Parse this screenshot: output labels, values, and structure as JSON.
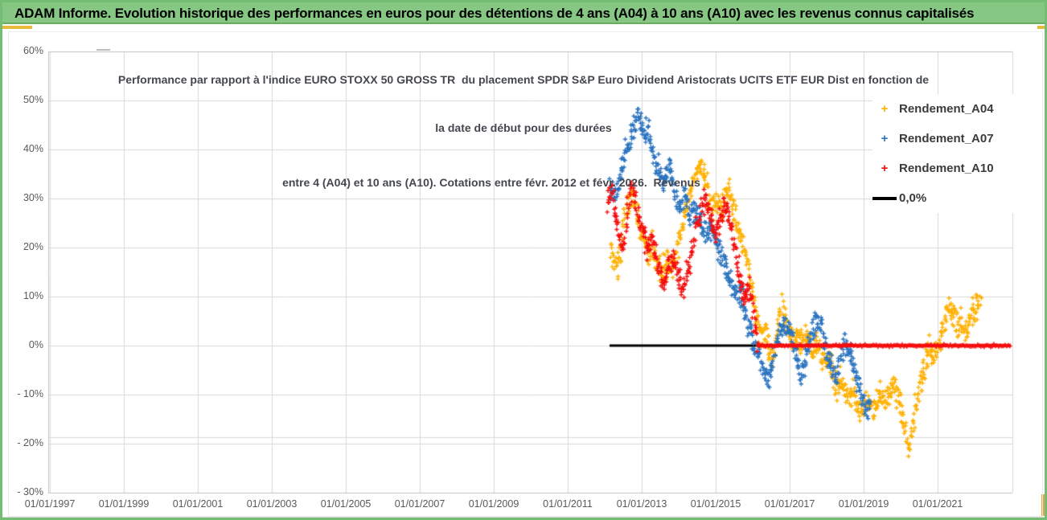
{
  "banner": {
    "title": "ADAM Informe. Evolution historique des performances en euros pour des détentions de 4 ans (A04) à 10 ans (A10) avec les revenus connus capitalisés"
  },
  "chart": {
    "title_line1": "Performance par rapport à l'indice EURO STOXX 50 GROSS TR  du placement SPDR S&P Euro Dividend Aristocrats UCITS ETF EUR Dist en fonction de",
    "title_line2": "la date de début pour des durées",
    "title_line3": "entre 4 (A04) et 10 ans (A10). Cotations entre févr. 2012 et févr. 2026.  Revenus",
    "y_axis": {
      "labels": [
        "60%",
        "50%",
        "40%",
        "30%",
        "20%",
        "10%",
        "0%",
        "- 10%",
        "- 20%",
        "- 30%"
      ],
      "max": 60,
      "min": -30,
      "step": 10
    },
    "x_axis": {
      "labels": [
        "01/01/1997",
        "01/01/1999",
        "01/01/2001",
        "01/01/2003",
        "01/01/2005",
        "01/01/2007",
        "01/01/2009",
        "01/01/2011",
        "01/01/2013",
        "01/01/2015",
        "01/01/2017",
        "01/01/2019",
        "01/01/2021"
      ],
      "tick_years": [
        1997,
        1999,
        2001,
        2003,
        2005,
        2007,
        2009,
        2011,
        2013,
        2015,
        2017,
        2019,
        2021
      ]
    },
    "legend": [
      {
        "label": "Rendement_A04",
        "marker": "plus",
        "color": "#FFB000"
      },
      {
        "label": "Rendement_A07",
        "marker": "plus",
        "color": "#2B74C0"
      },
      {
        "label": "Rendement_A10",
        "marker": "plus",
        "color": "#F50D0D"
      },
      {
        "label": "0,0%",
        "marker": "line",
        "color": "#000000"
      }
    ],
    "colors": {
      "grid": "#D9D9D9",
      "axis": "#C0C0C0",
      "title_text": "#45474F",
      "axis_text": "#595959",
      "banner_green": "#85C783",
      "frame_green": "#74BD74",
      "gold_accent": "#E9B939"
    }
  },
  "chart_data": {
    "type": "scatter",
    "marker": "plus",
    "x_range": [
      1997,
      2023.02
    ],
    "y_range_pct": [
      -30,
      60
    ],
    "grid": true,
    "legend_position": "right-inside",
    "zero_line": {
      "label": "0,0%",
      "y_pct": 0,
      "x_start": 2012.13,
      "x_end": 2022.98,
      "color": "#000000"
    },
    "series": [
      {
        "name": "Rendement_A04",
        "color": "#FFB000",
        "band_halfwidth_pct": 3.2,
        "points": [
          [
            2012.17,
            20
          ],
          [
            2012.3,
            15
          ],
          [
            2012.41,
            18
          ],
          [
            2012.52,
            26
          ],
          [
            2012.63,
            30
          ],
          [
            2012.74,
            31
          ],
          [
            2012.85,
            28
          ],
          [
            2012.96,
            24
          ],
          [
            2013.07,
            22
          ],
          [
            2013.17,
            19
          ],
          [
            2013.28,
            20.5
          ],
          [
            2013.39,
            17
          ],
          [
            2013.5,
            15
          ],
          [
            2013.61,
            16
          ],
          [
            2013.72,
            17.5
          ],
          [
            2013.83,
            15.5
          ],
          [
            2013.93,
            19
          ],
          [
            2014.04,
            22
          ],
          [
            2014.15,
            26
          ],
          [
            2014.26,
            30
          ],
          [
            2014.37,
            33
          ],
          [
            2014.48,
            36
          ],
          [
            2014.59,
            37.5
          ],
          [
            2014.7,
            35
          ],
          [
            2014.8,
            31
          ],
          [
            2014.91,
            28
          ],
          [
            2015.02,
            30
          ],
          [
            2015.13,
            27
          ],
          [
            2015.24,
            30
          ],
          [
            2015.35,
            32
          ],
          [
            2015.46,
            29
          ],
          [
            2015.57,
            25
          ],
          [
            2015.67,
            22
          ],
          [
            2015.78,
            19
          ],
          [
            2015.89,
            15
          ],
          [
            2016.0,
            10
          ],
          [
            2016.11,
            5
          ],
          [
            2016.22,
            2
          ],
          [
            2016.33,
            4
          ],
          [
            2016.43,
            0
          ],
          [
            2016.54,
            -4
          ],
          [
            2016.65,
            3
          ],
          [
            2016.76,
            8
          ],
          [
            2016.87,
            5
          ],
          [
            2016.98,
            3
          ],
          [
            2017.09,
            1.5
          ],
          [
            2017.2,
            2
          ],
          [
            2017.3,
            0.5
          ],
          [
            2017.41,
            2
          ],
          [
            2017.52,
            1
          ],
          [
            2017.63,
            -1
          ],
          [
            2017.74,
            0.5
          ],
          [
            2017.85,
            -2
          ],
          [
            2017.96,
            -3.5
          ],
          [
            2018.07,
            -2
          ],
          [
            2018.17,
            -6
          ],
          [
            2018.28,
            -8.5
          ],
          [
            2018.39,
            -7
          ],
          [
            2018.5,
            -9.5
          ],
          [
            2018.61,
            -11
          ],
          [
            2018.72,
            -9
          ],
          [
            2018.83,
            -12
          ],
          [
            2018.93,
            -13.5
          ],
          [
            2019.04,
            -12
          ],
          [
            2019.15,
            -10.5
          ],
          [
            2019.26,
            -13
          ],
          [
            2019.37,
            -11
          ],
          [
            2019.48,
            -9
          ],
          [
            2019.59,
            -11.5
          ],
          [
            2019.7,
            -10
          ],
          [
            2019.8,
            -8
          ],
          [
            2019.91,
            -10.5
          ],
          [
            2020.02,
            -13
          ],
          [
            2020.13,
            -17
          ],
          [
            2020.24,
            -20.5
          ],
          [
            2020.35,
            -15
          ],
          [
            2020.46,
            -11
          ],
          [
            2020.57,
            -7
          ],
          [
            2020.67,
            -4
          ],
          [
            2020.78,
            -1
          ],
          [
            2020.89,
            -2
          ],
          [
            2021.0,
            -0.5
          ],
          [
            2021.11,
            2
          ],
          [
            2021.22,
            6
          ],
          [
            2021.33,
            8.5
          ],
          [
            2021.43,
            6
          ],
          [
            2021.54,
            4
          ],
          [
            2021.65,
            5.5
          ],
          [
            2021.76,
            3.5
          ],
          [
            2021.87,
            5
          ],
          [
            2021.98,
            7
          ],
          [
            2022.09,
            8
          ],
          [
            2022.17,
            9.5
          ]
        ]
      },
      {
        "name": "Rendement_A07",
        "color": "#2B74C0",
        "band_halfwidth_pct": 2.8,
        "points": [
          [
            2012.13,
            32
          ],
          [
            2012.28,
            30
          ],
          [
            2012.45,
            36
          ],
          [
            2012.63,
            41
          ],
          [
            2012.78,
            45
          ],
          [
            2012.89,
            46.5
          ],
          [
            2013.04,
            43.5
          ],
          [
            2013.17,
            44
          ],
          [
            2013.33,
            38.5
          ],
          [
            2013.48,
            36
          ],
          [
            2013.61,
            33
          ],
          [
            2013.76,
            37
          ],
          [
            2013.91,
            31
          ],
          [
            2014.04,
            28
          ],
          [
            2014.2,
            31
          ],
          [
            2014.3,
            26
          ],
          [
            2014.46,
            28
          ],
          [
            2014.59,
            25.5
          ],
          [
            2014.74,
            23
          ],
          [
            2014.85,
            24.5
          ],
          [
            2015.0,
            21
          ],
          [
            2015.13,
            19
          ],
          [
            2015.28,
            16
          ],
          [
            2015.43,
            13
          ],
          [
            2015.54,
            10.5
          ],
          [
            2015.65,
            11.5
          ],
          [
            2015.78,
            7
          ],
          [
            2015.89,
            4
          ],
          [
            2016.0,
            1
          ],
          [
            2016.11,
            -1.5
          ],
          [
            2016.22,
            -3
          ],
          [
            2016.33,
            -6
          ],
          [
            2016.43,
            -6.5
          ],
          [
            2016.54,
            -3
          ],
          [
            2016.65,
            1
          ],
          [
            2016.76,
            3
          ],
          [
            2016.87,
            4
          ],
          [
            2016.98,
            2.5
          ],
          [
            2017.09,
            1
          ],
          [
            2017.2,
            -3
          ],
          [
            2017.3,
            -6.5
          ],
          [
            2017.39,
            -5
          ],
          [
            2017.5,
            0
          ],
          [
            2017.61,
            3
          ],
          [
            2017.72,
            5
          ],
          [
            2017.83,
            4.5
          ],
          [
            2017.93,
            1
          ],
          [
            2018.04,
            -2
          ],
          [
            2018.15,
            -5
          ],
          [
            2018.26,
            -6.5
          ],
          [
            2018.37,
            -3
          ],
          [
            2018.48,
            0.5
          ],
          [
            2018.59,
            -1
          ],
          [
            2018.7,
            -3.5
          ],
          [
            2018.8,
            -6
          ],
          [
            2018.91,
            -9
          ],
          [
            2019.02,
            -12
          ],
          [
            2019.13,
            -13
          ],
          [
            2019.2,
            -11
          ]
        ]
      },
      {
        "name": "Rendement_A10",
        "color": "#F50D0D",
        "band_halfwidth_pct": 3.0,
        "points": [
          [
            2012.09,
            29
          ],
          [
            2012.2,
            31
          ],
          [
            2012.3,
            26
          ],
          [
            2012.41,
            22
          ],
          [
            2012.52,
            19
          ],
          [
            2012.63,
            28
          ],
          [
            2012.74,
            33
          ],
          [
            2012.85,
            30
          ],
          [
            2012.96,
            25
          ],
          [
            2013.07,
            22
          ],
          [
            2013.17,
            20
          ],
          [
            2013.28,
            22
          ],
          [
            2013.39,
            18
          ],
          [
            2013.5,
            15
          ],
          [
            2013.61,
            12.5
          ],
          [
            2013.72,
            16
          ],
          [
            2013.83,
            18
          ],
          [
            2013.93,
            16
          ],
          [
            2014.04,
            13
          ],
          [
            2014.15,
            10.5
          ],
          [
            2014.26,
            16
          ],
          [
            2014.37,
            20
          ],
          [
            2014.48,
            24
          ],
          [
            2014.59,
            27
          ],
          [
            2014.7,
            30
          ],
          [
            2014.8,
            28
          ],
          [
            2014.91,
            25
          ],
          [
            2015.02,
            22
          ],
          [
            2015.13,
            26
          ],
          [
            2015.24,
            29
          ],
          [
            2015.35,
            27
          ],
          [
            2015.46,
            22
          ],
          [
            2015.57,
            17
          ],
          [
            2015.67,
            13
          ],
          [
            2015.78,
            10
          ],
          [
            2015.89,
            12
          ],
          [
            2016.0,
            8
          ],
          [
            2016.07,
            4
          ],
          [
            2016.13,
            1
          ],
          [
            2016.17,
            0
          ]
        ],
        "flat_zero_tail": {
          "x_start": 2016.17,
          "x_end": 2022.98,
          "y_pct": 0
        }
      }
    ]
  }
}
